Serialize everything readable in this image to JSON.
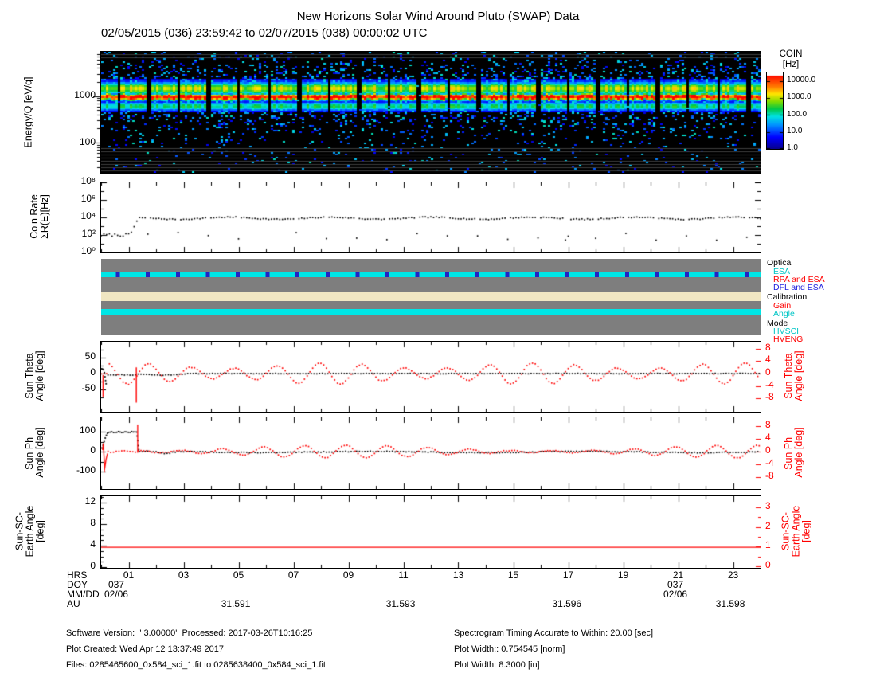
{
  "title": "New Horizons Solar Wind Around Pluto (SWAP) Data",
  "subtitle": "02/05/2015 (036) 23:59:42 to 02/07/2015 (038) 00:00:02 UTC",
  "colors": {
    "red": "#ff0000",
    "cyan": "#00e6e6",
    "navy": "#2323c4",
    "tan": "#f0e6c2",
    "panel_gray": "#7e7e7e",
    "black": "#000000"
  },
  "spectrogram": {
    "ylabel": "Energy/Q [eV/q]",
    "yticks": [
      "1000",
      "100"
    ],
    "colorbar": {
      "title_line1": "COIN",
      "title_line2": "[Hz]",
      "ticks": [
        "10000.0",
        "1000.0",
        "100.0",
        "10.0",
        "1.0"
      ]
    }
  },
  "coin_rate": {
    "ylabel_line1": "Coin Rate",
    "ylabel_line2": "ΣR(E)[Hz]",
    "yticks": [
      "10⁸",
      "10⁶",
      "10⁴",
      "10²",
      "10⁰"
    ]
  },
  "status": {
    "labels": [
      {
        "text": "Optical",
        "color": "#000000",
        "indent": 0
      },
      {
        "text": "ESA",
        "color": "#00c6c6",
        "indent": 1
      },
      {
        "text": "RPA and ESA",
        "color": "#ff0000",
        "indent": 1
      },
      {
        "text": "DFL and ESA",
        "color": "#2222dd",
        "indent": 1
      },
      {
        "text": "Calibration",
        "color": "#000000",
        "indent": 0
      },
      {
        "text": "Gain",
        "color": "#ff0000",
        "indent": 1
      },
      {
        "text": "Angle",
        "color": "#00c6c6",
        "indent": 1
      },
      {
        "text": "Mode",
        "color": "#000000",
        "indent": 0
      },
      {
        "text": "HVSCI",
        "color": "#00c6c6",
        "indent": 1
      },
      {
        "text": "HVENG",
        "color": "#ff0000",
        "indent": 1
      }
    ]
  },
  "sun_theta": {
    "ylabel_line1": "Sun Theta",
    "ylabel_line2": "Angle [deg]",
    "left_ticks": [
      "50",
      "0",
      "-50"
    ],
    "right_ticks": [
      "8",
      "4",
      "0",
      "-4",
      "-8"
    ]
  },
  "sun_phi": {
    "ylabel_line1": "Sun Phi",
    "ylabel_line2": "Angle [deg]",
    "left_ticks": [
      "100",
      "0",
      "-100"
    ],
    "right_ticks": [
      "8",
      "4",
      "0",
      "-4",
      "-8"
    ]
  },
  "sun_sc_earth": {
    "ylabel_line1": "Sun-SC-",
    "ylabel_line2": "Earth Angle",
    "ylabel_line3": "[deg]",
    "left_ticks": [
      "12",
      "8",
      "4",
      "0"
    ],
    "right_ticks": [
      "3",
      "2",
      "1",
      "0"
    ]
  },
  "xaxis": {
    "row_labels": [
      "HRS",
      "DOY",
      "MM/DD",
      "AU"
    ],
    "hrs": [
      {
        "label": "01",
        "hour": 1
      },
      {
        "label": "03",
        "hour": 3
      },
      {
        "label": "05",
        "hour": 5
      },
      {
        "label": "07",
        "hour": 7
      },
      {
        "label": "09",
        "hour": 9
      },
      {
        "label": "11",
        "hour": 11
      },
      {
        "label": "13",
        "hour": 13
      },
      {
        "label": "15",
        "hour": 15
      },
      {
        "label": "17",
        "hour": 17
      },
      {
        "label": "19",
        "hour": 19
      },
      {
        "label": "21",
        "hour": 21
      },
      {
        "label": "23",
        "hour": 23
      }
    ],
    "doy": [
      {
        "label": "037",
        "hour": 0.55
      },
      {
        "label": "037",
        "hour": 20.9
      }
    ],
    "mmdd": [
      {
        "label": "02/06",
        "hour": 0.55
      },
      {
        "label": "02/06",
        "hour": 20.9
      }
    ],
    "au": [
      {
        "label": "31.591",
        "hour": 4.9
      },
      {
        "label": "31.593",
        "hour": 10.9
      },
      {
        "label": "31.596",
        "hour": 16.95
      },
      {
        "label": "31.598",
        "hour": 22.9
      }
    ]
  },
  "footer": {
    "left": [
      "Software Version:  ' 3.00000'  Processed: 2017-03-26T10:16:25",
      "Plot Created: Wed Apr 12 13:37:49 2017",
      "Files: 0285465600_0x584_sci_1.fit to 0285638400_0x584_sci_1.fit"
    ],
    "right": [
      "Spectrogram Timing Accurate to Within: 20.00 [sec]",
      "Plot Width:: 0.754545 [norm]",
      "Plot Width: 8.3000 [in]"
    ]
  },
  "chart_data": [
    {
      "id": "spectrogram",
      "type": "heatmap",
      "x_range_hours": [
        0,
        24
      ],
      "x_start_utc": "02/05/2015 23:59:42",
      "y_label": "Energy/Q [eV/q]",
      "y_scale": "log",
      "y_range_ev": [
        25,
        9000
      ],
      "y_tick_labels": [
        "1000",
        "100"
      ],
      "z_label": "COIN [Hz]",
      "z_scale": "log",
      "z_range_hz": [
        1,
        31623
      ],
      "z_tick_labels": [
        "10000.0",
        "1000.0",
        "100.0",
        "10.0",
        "1.0"
      ],
      "main_band": {
        "center_ev": 950,
        "peak_coin_hz": 25000,
        "width_decades": 0.05
      },
      "halo_band": {
        "center_ev": 1450,
        "peak_coin_hz": 800,
        "width_decades": 0.1
      },
      "sub_band": {
        "center_ev": 600,
        "peak_coin_hz": 150,
        "width_decades": 0.07
      },
      "data_gap_interval_hours": 1.09,
      "data_gap_width_hours": 0.13,
      "noise_floor_hz": [
        1,
        60
      ],
      "background": "black"
    },
    {
      "id": "coin_rate",
      "type": "scatter",
      "y_scale": "log",
      "ylim": [
        1,
        100000000
      ],
      "y_tick_labels": [
        "10⁸",
        "10⁶",
        "10⁴",
        "10²",
        "10⁰"
      ],
      "series": [
        {
          "name": "coin_rate",
          "color": "#000000",
          "typical_value_hz": 8000,
          "initial_value_hz": 100,
          "initial_duration_hours": 1.1,
          "dropout_value_hz": 25,
          "dropout_interval_hours": 1.09
        }
      ]
    },
    {
      "id": "instrument_status",
      "type": "timeline",
      "background_color": "#7e7e7e",
      "bars": [
        {
          "group": "Optical",
          "label": "ESA",
          "color": "#00e6e6",
          "marks": {
            "label": "DFL and ESA",
            "color": "#2323c4",
            "interval_hours": 1.09
          }
        },
        {
          "group": "Calibration",
          "label": "Gain",
          "color": "#f0e6c2"
        },
        {
          "group": "Mode",
          "label": "HVSCI",
          "color": "#00e6e6"
        }
      ]
    },
    {
      "id": "sun_theta",
      "type": "scatter",
      "left_axis": {
        "label": "Sun Theta Angle [deg]",
        "ticks": [
          50,
          0,
          -50
        ],
        "ylim": [
          -110,
          110
        ]
      },
      "right_axis": {
        "label": "Sun Theta Angle [deg]",
        "ticks": [
          8,
          4,
          0,
          -4,
          -8
        ],
        "ylim": [
          -11,
          11
        ],
        "color": "#ff0000"
      },
      "series": [
        {
          "name": "theta_coarse",
          "axis": "left",
          "color": "#000000",
          "steady_deg": 0,
          "initial_transient": {
            "hours": [
              0,
              0.2
            ],
            "from_deg": 15,
            "to_deg": -33
          }
        },
        {
          "name": "theta_fine",
          "axis": "right",
          "color": "#ff0000",
          "oscillation": {
            "amplitude_deg": 2.5,
            "amplitude_mod_deg": 0.9,
            "period_hours": 1.55
          },
          "spike": {
            "hour": 1.28,
            "from_deg": 2,
            "to_deg": -9.3
          }
        }
      ]
    },
    {
      "id": "sun_phi",
      "type": "scatter",
      "left_axis": {
        "label": "Sun Phi Angle [deg]",
        "ticks": [
          100,
          0,
          -100
        ],
        "ylim": [
          -170,
          170
        ]
      },
      "right_axis": {
        "label": "Sun Phi Angle [deg]",
        "ticks": [
          8,
          4,
          0,
          -4,
          -8
        ],
        "ylim": [
          -11,
          11
        ],
        "color": "#ff0000"
      },
      "series": [
        {
          "name": "phi_coarse",
          "axis": "left",
          "color": "#000000",
          "initial_ramp": {
            "hours": [
              0,
              0.25
            ],
            "from_deg": 18,
            "to_deg": 95
          },
          "plateau": {
            "hours": [
              0.25,
              1.3
            ],
            "value_deg": 100
          },
          "drop": {
            "hour": 1.33,
            "to_deg": 0
          },
          "steady_deg": 0
        },
        {
          "name": "phi_fine",
          "axis": "right",
          "color": "#ff0000",
          "early_excursion": {
            "hours": [
              0.05,
              0.22
            ],
            "min_deg": -5.3,
            "max_deg": 2.6
          },
          "spike": {
            "hour": 1.33,
            "from_deg": 8.5,
            "to_deg": -0.4
          },
          "oscillation": {
            "amplitude_deg": 1.2,
            "amplitude_mod_deg": 0.9,
            "period_hours": 1.5
          }
        }
      ]
    },
    {
      "id": "sun_sc_earth",
      "type": "line",
      "left_axis": {
        "label": "Sun-SC-Earth Angle [deg]",
        "ticks": [
          12,
          8,
          4,
          0
        ],
        "ylim": [
          0,
          13
        ]
      },
      "right_axis": {
        "label": "Sun-SC-Earth Angle [deg]",
        "ticks": [
          3,
          2,
          1,
          0
        ],
        "ylim": [
          0,
          3.4
        ],
        "color": "#ff0000"
      },
      "series": [
        {
          "name": "sun_sc_earth_angle",
          "color": "#ff0000",
          "constant": true,
          "constant_value_left": 3.7,
          "constant_value_right": 1.0
        }
      ]
    }
  ]
}
